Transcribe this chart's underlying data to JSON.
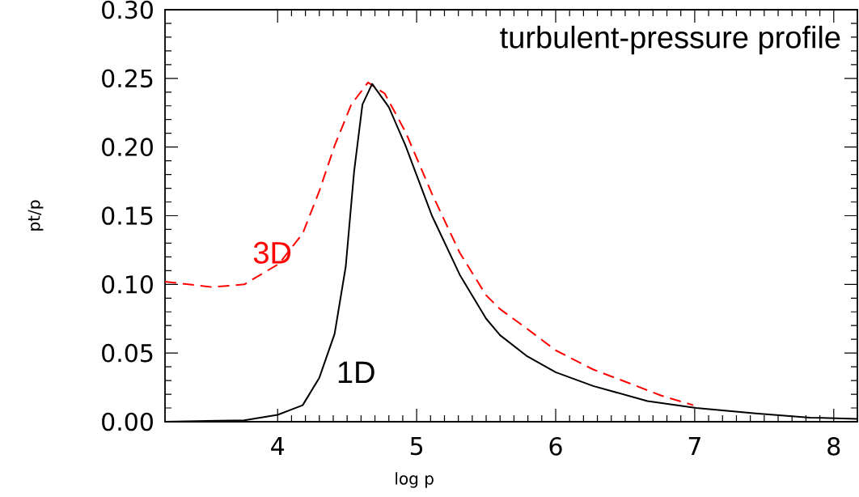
{
  "chart_data": {
    "type": "line",
    "title": "turbulent-pressure profile",
    "xlabel": "log p",
    "ylabel": "pt/p",
    "xlim": [
      3.19,
      8.17
    ],
    "ylim": [
      0,
      0.3
    ],
    "xticks": [
      4,
      5,
      6,
      7,
      8
    ],
    "yticks": [
      {
        "value": 0,
        "label": "0.00"
      },
      {
        "value": 0.05,
        "label": "0.05"
      },
      {
        "value": 0.1,
        "label": "0.10"
      },
      {
        "value": 0.15,
        "label": "0.15"
      },
      {
        "value": 0.2,
        "label": "0.20"
      },
      {
        "value": 0.25,
        "label": "0.25"
      },
      {
        "value": 0.3,
        "label": "0.30"
      }
    ],
    "marker": "none",
    "grid": false,
    "series": [
      {
        "name": "3D",
        "color": "#ff0000",
        "line_style": "dashed",
        "x": [
          3.19,
          3.53,
          3.76,
          4.01,
          4.18,
          4.3,
          4.41,
          4.53,
          4.65,
          4.77,
          4.92,
          5.11,
          5.31,
          5.5,
          5.6,
          5.79,
          6.0,
          6.27,
          6.53,
          6.76,
          6.99
        ],
        "values": [
          0.102,
          0.098,
          0.1,
          0.115,
          0.137,
          0.168,
          0.201,
          0.231,
          0.247,
          0.239,
          0.211,
          0.166,
          0.123,
          0.092,
          0.082,
          0.068,
          0.052,
          0.038,
          0.028,
          0.019,
          0.012
        ]
      },
      {
        "name": "1D",
        "color": "#000000",
        "line_style": "solid",
        "x": [
          3.19,
          3.76,
          4.0,
          4.18,
          4.3,
          4.41,
          4.49,
          4.55,
          4.61,
          4.68,
          4.8,
          4.92,
          5.11,
          5.31,
          5.5,
          5.6,
          5.79,
          6.0,
          6.27,
          6.66,
          7.01,
          7.44,
          7.83,
          8.17
        ],
        "values": [
          0.0,
          0.001,
          0.005,
          0.012,
          0.032,
          0.064,
          0.113,
          0.182,
          0.231,
          0.246,
          0.229,
          0.201,
          0.15,
          0.107,
          0.075,
          0.063,
          0.048,
          0.036,
          0.026,
          0.015,
          0.01,
          0.006,
          0.003,
          0.002
        ]
      }
    ]
  }
}
